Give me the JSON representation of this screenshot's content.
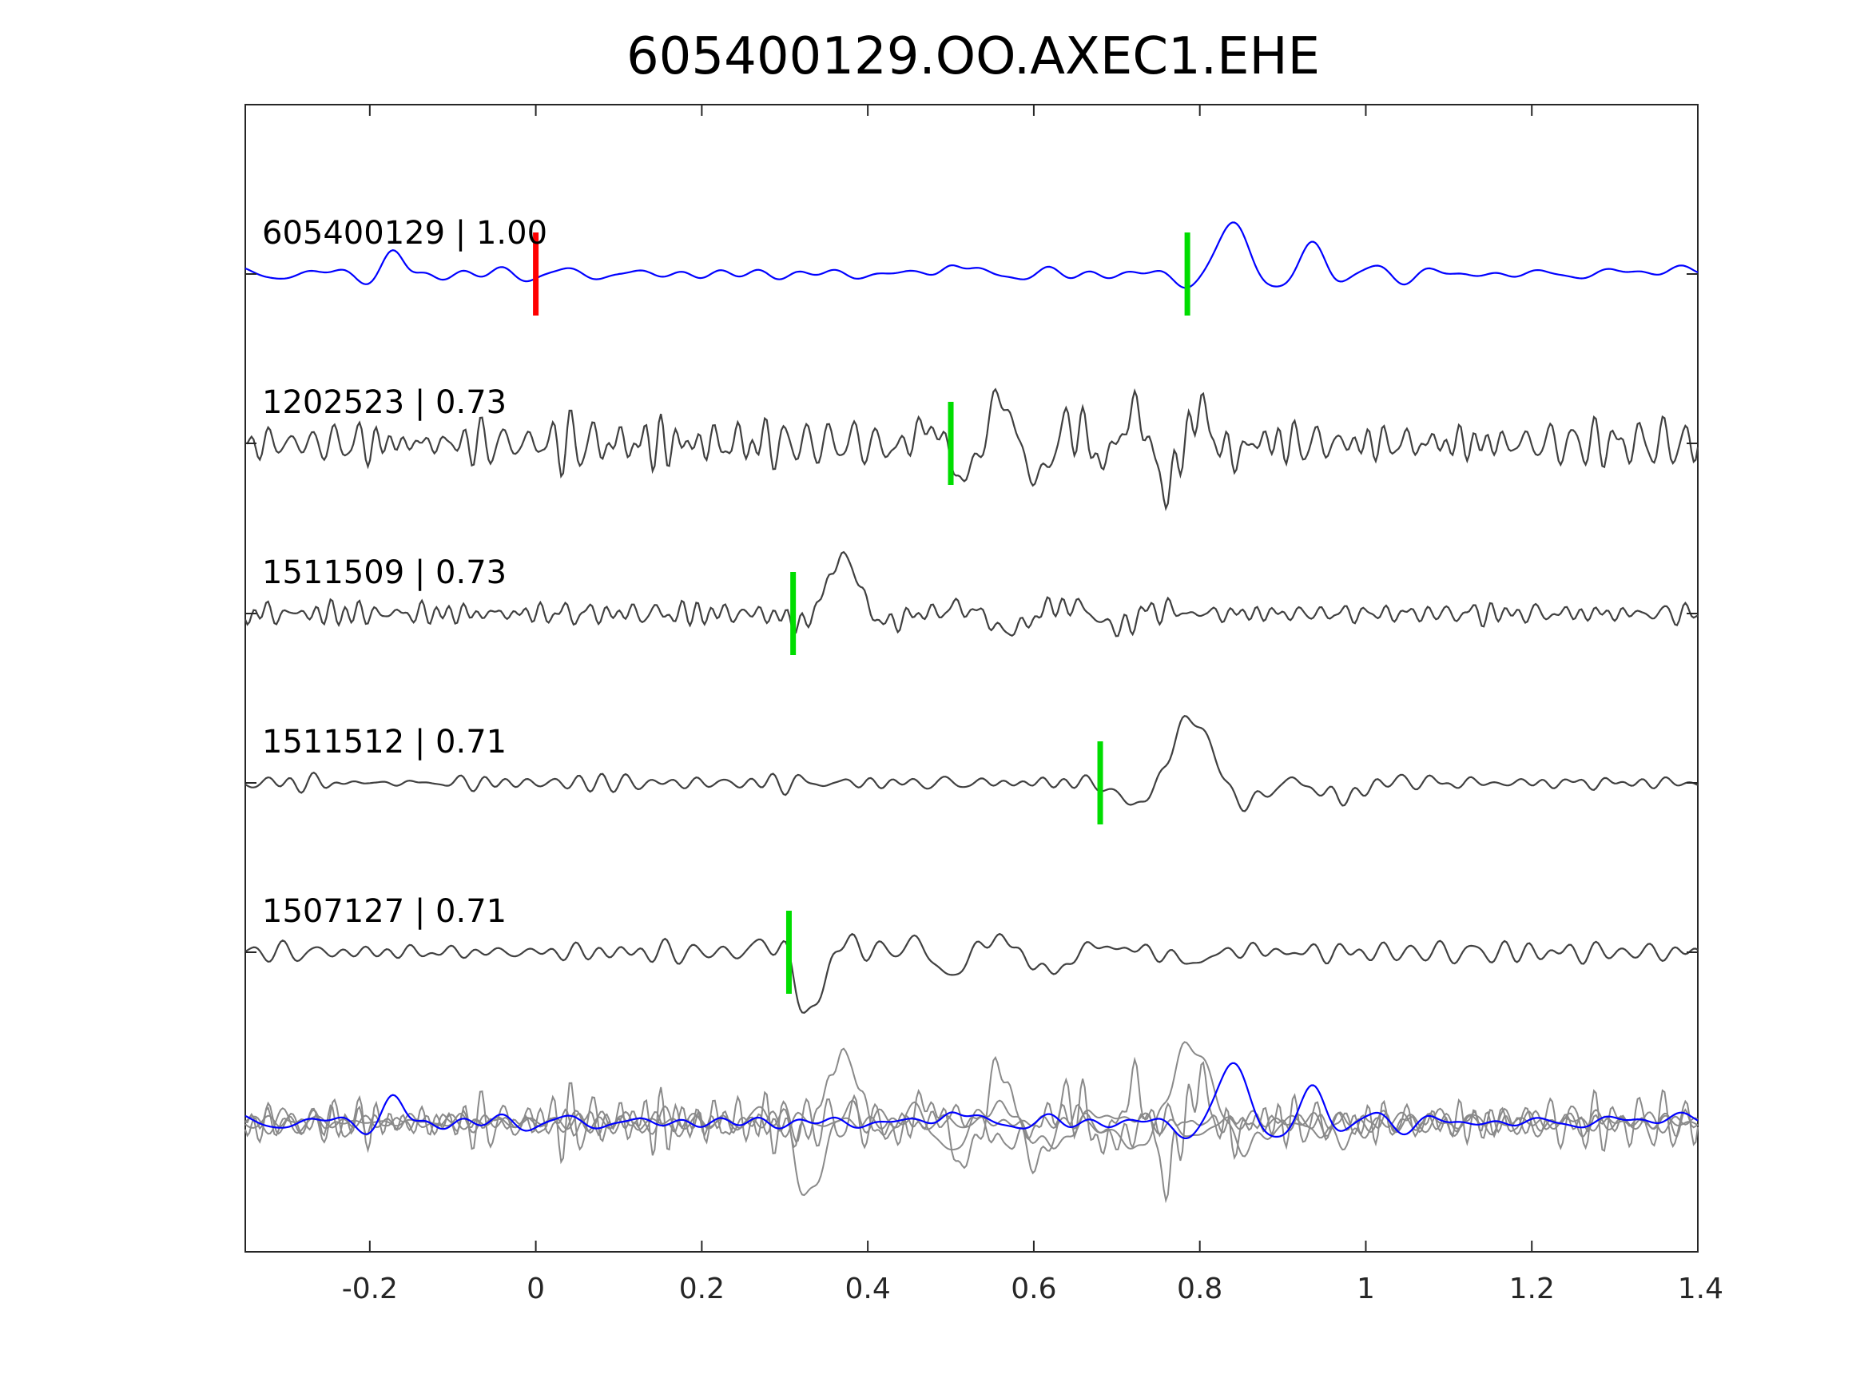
{
  "chart_data": {
    "type": "line",
    "title": "605400129.OO.AXEC1.EHE",
    "xlabel": "",
    "ylabel": "",
    "xlim": [
      -0.35,
      1.4
    ],
    "x_ticks": [
      "-0.2",
      "0",
      "0.2",
      "0.4",
      "0.6",
      "0.8",
      "1",
      "1.2",
      "1.4"
    ],
    "x_tick_values": [
      -0.2,
      0,
      0.2,
      0.4,
      0.6,
      0.8,
      1,
      1.2,
      1.4
    ],
    "grid": false,
    "colors": {
      "template": "#0000ff",
      "match": "#404040",
      "overlay": "#8a8a8a",
      "origin_pick": "#ff0000",
      "phase_pick": "#00dd00",
      "axis": "#262626"
    },
    "traces": [
      {
        "label": "605400129 | 1.00",
        "id": "605400129",
        "cc": 1.0,
        "pick_time": 0.785,
        "origin_time": 0.0,
        "is_template": true
      },
      {
        "label": "1202523 | 0.73",
        "id": "1202523",
        "cc": 0.73,
        "pick_time": 0.5
      },
      {
        "label": "1511509 | 0.73",
        "id": "1511509",
        "cc": 0.73,
        "pick_time": 0.31
      },
      {
        "label": "1511512 | 0.71",
        "id": "1511512",
        "cc": 0.71,
        "pick_time": 0.68
      },
      {
        "label": "1507127 | 0.71",
        "id": "1507127",
        "cc": 0.71,
        "pick_time": 0.305
      }
    ]
  }
}
